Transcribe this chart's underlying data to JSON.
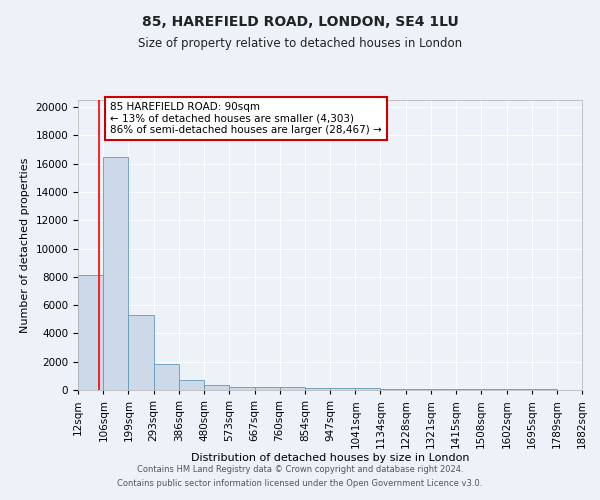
{
  "title": "85, HAREFIELD ROAD, LONDON, SE4 1LU",
  "subtitle": "Size of property relative to detached houses in London",
  "xlabel": "Distribution of detached houses by size in London",
  "ylabel": "Number of detached properties",
  "footer_line1": "Contains HM Land Registry data © Crown copyright and database right 2024.",
  "footer_line2": "Contains public sector information licensed under the Open Government Licence v3.0.",
  "annotation_title": "85 HAREFIELD ROAD: 90sqm",
  "annotation_line2": "← 13% of detached houses are smaller (4,303)",
  "annotation_line3": "86% of semi-detached houses are larger (28,467) →",
  "categories": [
    "12sqm",
    "106sqm",
    "199sqm",
    "293sqm",
    "386sqm",
    "480sqm",
    "573sqm",
    "667sqm",
    "760sqm",
    "854sqm",
    "947sqm",
    "1041sqm",
    "1134sqm",
    "1228sqm",
    "1321sqm",
    "1415sqm",
    "1508sqm",
    "1602sqm",
    "1695sqm",
    "1789sqm",
    "1882sqm"
  ],
  "bin_edges": [
    12,
    106,
    199,
    293,
    386,
    480,
    573,
    667,
    760,
    854,
    947,
    1041,
    1134,
    1228,
    1321,
    1415,
    1508,
    1602,
    1695,
    1789,
    1882
  ],
  "bar_heights": [
    8100,
    16500,
    5300,
    1850,
    700,
    320,
    230,
    200,
    180,
    160,
    130,
    110,
    90,
    75,
    65,
    55,
    50,
    45,
    40,
    35
  ],
  "bar_color": "#ccd9e8",
  "bar_edge_color": "#6699bb",
  "red_line_x": 90,
  "ylim": [
    0,
    20500
  ],
  "yticks": [
    0,
    2000,
    4000,
    6000,
    8000,
    10000,
    12000,
    14000,
    16000,
    18000,
    20000
  ],
  "background_color": "#edf2f9",
  "grid_color": "#ffffff",
  "annotation_box_facecolor": "#ffffff",
  "annotation_box_edgecolor": "#cc0000",
  "title_fontsize": 10,
  "subtitle_fontsize": 8.5,
  "axis_label_fontsize": 8,
  "tick_fontsize": 7.5,
  "annotation_fontsize": 7.5,
  "footer_fontsize": 6
}
